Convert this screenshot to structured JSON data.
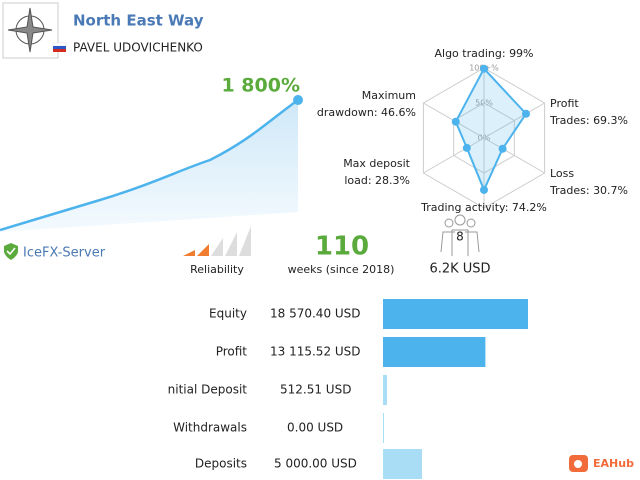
{
  "header": {
    "title": "North East Way",
    "author": "PAVEL UDOVICHENKO"
  },
  "growth": "1 800%",
  "server": "IceFX-Server",
  "reliability": "Reliability",
  "weeks": {
    "value": "110",
    "label": "weeks (since 2018)"
  },
  "subscribers": {
    "count": "8",
    "funds": "6.2K USD"
  },
  "radar": {
    "ticks": [
      {
        "value": 0,
        "label": "0%"
      },
      {
        "value": 50,
        "label": "50%"
      },
      {
        "value": 100,
        "label": "100+%"
      }
    ],
    "axes": [
      {
        "label": [
          "Algo trading:"
        ],
        "value": 99,
        "value_label": "99%"
      },
      {
        "label": [
          "Profit",
          "Trades:"
        ],
        "value": 69.3,
        "value_label": "69.3%"
      },
      {
        "label": [
          "Loss",
          "Trades:"
        ],
        "value": 30.7,
        "value_label": "30.7%"
      },
      {
        "label": [
          "Trading activity:"
        ],
        "value": 74.2,
        "value_label": "74.2%"
      },
      {
        "label": [
          "Max deposit",
          "load:"
        ],
        "value": 28.3,
        "value_label": "28.3%"
      },
      {
        "label": [
          "Maximum",
          "drawdown:"
        ],
        "value": 46.6,
        "value_label": "46.6%"
      }
    ]
  },
  "balance": {
    "rows": [
      {
        "label": "Equity",
        "value": 18570.4,
        "value_label": "18 570.40 USD",
        "color": "#4db3ec"
      },
      {
        "label": "Profit",
        "value": 13115.52,
        "value_label": "13 115.52 USD",
        "color": "#4db3ec"
      },
      {
        "label": "nitial Deposit",
        "value": 512.51,
        "value_label": "512.51 USD",
        "color": "#a9dcf5"
      },
      {
        "label": "Withdrawals",
        "value": 0.0,
        "value_label": "0.00 USD",
        "color": "#a9dcf5"
      },
      {
        "label": "Deposits",
        "value": 5000.0,
        "value_label": "5 000.00 USD",
        "color": "#a9dcf5"
      }
    ]
  },
  "watermark": "EAHub"
}
